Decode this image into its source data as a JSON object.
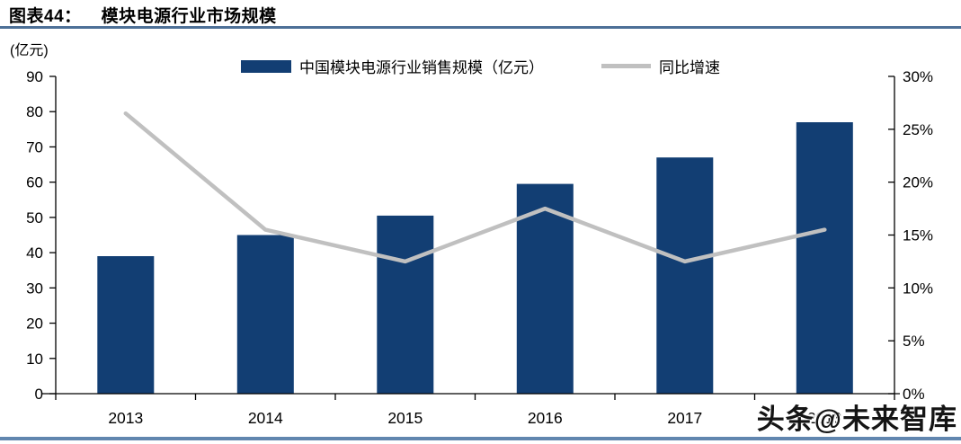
{
  "figure": {
    "label": "图表44：",
    "title": "模块电源行业市场规模",
    "unit_label": "(亿元)",
    "watermark": "头条@未来智库"
  },
  "legend": {
    "items": [
      {
        "label": "中国模块电源行业销售规模（亿元）",
        "marker": "bar"
      },
      {
        "label": "同比增速",
        "marker": "line"
      }
    ]
  },
  "colors": {
    "bar": "#123e73",
    "line": "#c0c0c0",
    "axis": "#000000",
    "title_rule": "#4d7097",
    "bottom_rule": "#6186af",
    "watermark_text": "#151515"
  },
  "chart_data": {
    "type": "bar",
    "title": "模块电源行业市场规模",
    "categories": [
      "2013",
      "2014",
      "2015",
      "2016",
      "2017",
      "2018"
    ],
    "series": [
      {
        "name": "中国模块电源行业销售规模（亿元）",
        "type": "bar",
        "axis": "left",
        "values": [
          39,
          45,
          50.5,
          59.5,
          67,
          77
        ]
      },
      {
        "name": "同比增速",
        "type": "line",
        "axis": "right",
        "values": [
          26.5,
          15.5,
          12.5,
          17.5,
          12.5,
          15.5
        ]
      }
    ],
    "left_axis": {
      "label": "(亿元)",
      "min": 0,
      "max": 90,
      "step": 10,
      "tick_labels": [
        "0",
        "10",
        "20",
        "30",
        "40",
        "50",
        "60",
        "70",
        "80",
        "90"
      ]
    },
    "right_axis": {
      "min": 0,
      "max": 30,
      "step": 5,
      "tick_labels": [
        "0%",
        "5%",
        "10%",
        "15%",
        "20%",
        "25%",
        "30%"
      ]
    },
    "grid": false,
    "legend_position": "top"
  }
}
